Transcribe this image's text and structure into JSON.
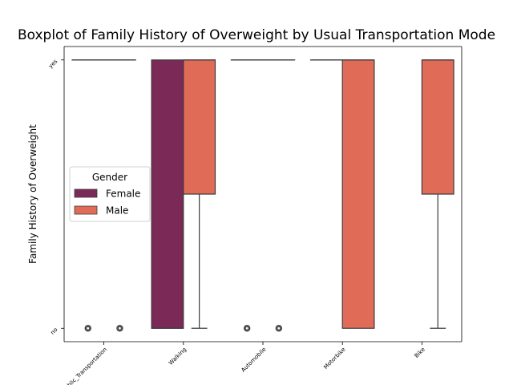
{
  "chart_data": {
    "type": "boxplot",
    "title": "Boxplot of Family History of Overweight by Usual Transportation Mode",
    "ylabel": "Family History of Overweight",
    "xlabel": "",
    "categories": [
      "Public_Transportation",
      "Walking",
      "Automobile",
      "Motorbike",
      "Bike"
    ],
    "y_categories": [
      "no",
      "yes"
    ],
    "y_values": {
      "no": 0,
      "yes": 1
    },
    "ylim": [
      -0.05,
      1.05
    ],
    "legend": {
      "title": "Gender",
      "placement": "center-left"
    },
    "grid": false,
    "series": [
      {
        "name": "Female",
        "color": "#7b2a58",
        "boxes": [
          {
            "category": "Public_Transportation",
            "q1": 1,
            "median": 1,
            "q3": 1,
            "whisker_low": 1,
            "whisker_high": 1,
            "outliers": [
              0
            ]
          },
          {
            "category": "Walking",
            "q1": 0,
            "median": 0,
            "q3": 1,
            "whisker_low": 0,
            "whisker_high": 1,
            "outliers": []
          },
          {
            "category": "Automobile",
            "q1": 1,
            "median": 1,
            "q3": 1,
            "whisker_low": 1,
            "whisker_high": 1,
            "outliers": [
              0
            ]
          },
          {
            "category": "Motorbike",
            "q1": 1,
            "median": 1,
            "q3": 1,
            "whisker_low": 1,
            "whisker_high": 1,
            "outliers": []
          }
        ]
      },
      {
        "name": "Male",
        "color": "#e06c57",
        "boxes": [
          {
            "category": "Public_Transportation",
            "q1": 1,
            "median": 1,
            "q3": 1,
            "whisker_low": 1,
            "whisker_high": 1,
            "outliers": [
              0
            ]
          },
          {
            "category": "Walking",
            "q1": 0.5,
            "median": 1,
            "q3": 1,
            "whisker_low": 0,
            "whisker_high": 1,
            "outliers": []
          },
          {
            "category": "Automobile",
            "q1": 1,
            "median": 1,
            "q3": 1,
            "whisker_low": 1,
            "whisker_high": 1,
            "outliers": [
              0
            ]
          },
          {
            "category": "Motorbike",
            "q1": 0,
            "median": 1,
            "q3": 1,
            "whisker_low": 0,
            "whisker_high": 1,
            "outliers": []
          },
          {
            "category": "Bike",
            "q1": 0.5,
            "median": 1,
            "q3": 1,
            "whisker_low": 0,
            "whisker_high": 1,
            "outliers": []
          }
        ]
      }
    ]
  }
}
